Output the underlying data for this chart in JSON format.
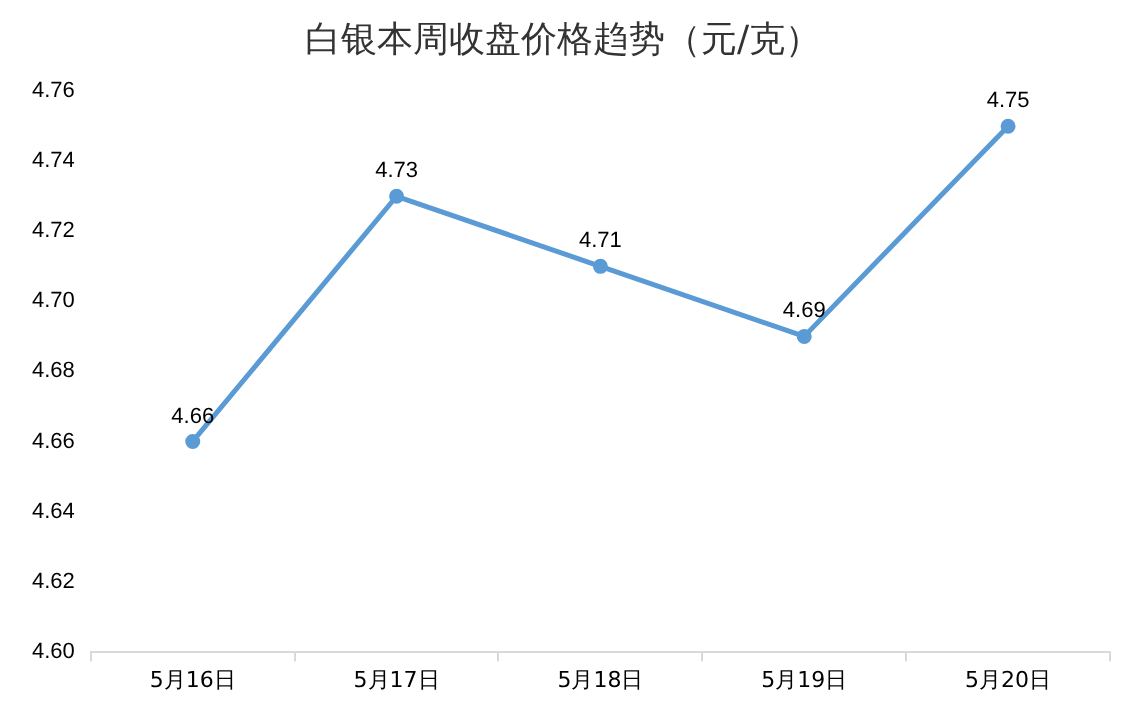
{
  "chart_data": {
    "type": "line",
    "title": "白银本周收盘价格趋势（元/克）",
    "categories": [
      "5月16日",
      "5月17日",
      "5月18日",
      "5月19日",
      "5月20日"
    ],
    "series": [
      {
        "color": "#5b9bd5",
        "values": [
          4.66,
          4.73,
          4.71,
          4.69,
          4.75
        ]
      }
    ],
    "ylim": [
      4.6,
      4.76
    ],
    "yticks": [
      {
        "value": 4.6,
        "label": "4.60"
      },
      4.62,
      4.64,
      4.66,
      4.68,
      {
        "value": 4.7,
        "label": "4.70"
      },
      4.72,
      4.74,
      4.76
    ],
    "grid": false,
    "legend": false,
    "marker": "circle",
    "line_style": "solid",
    "data_labels": true
  }
}
